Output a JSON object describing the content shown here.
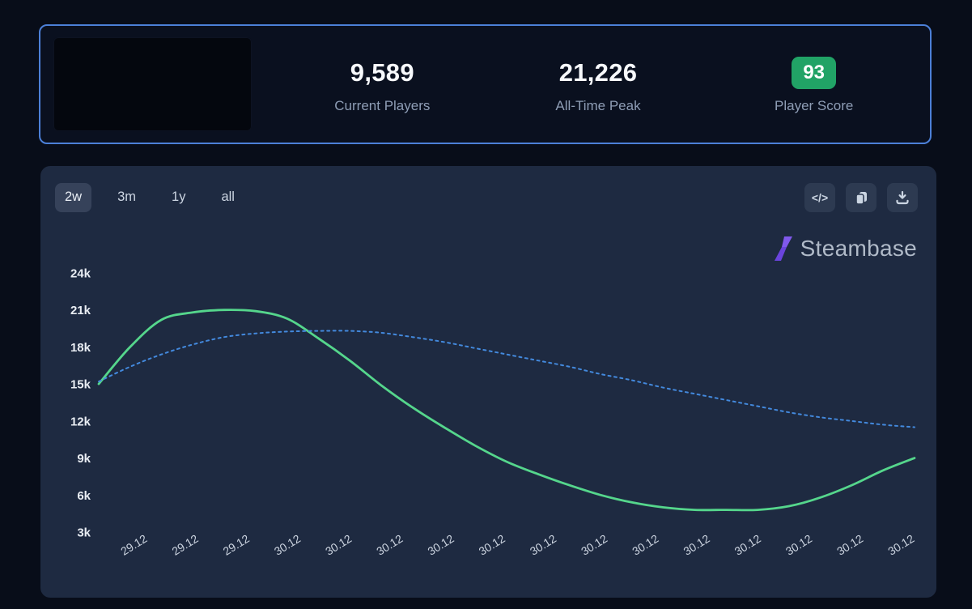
{
  "stats_card": {
    "current_players": {
      "value": "9,589",
      "label": "Current Players"
    },
    "all_time_peak": {
      "value": "21,226",
      "label": "All-Time Peak"
    },
    "player_score": {
      "value": "93",
      "label": "Player Score",
      "badge_color": "#21a366"
    }
  },
  "chart_card": {
    "range_buttons": [
      {
        "label": "2w",
        "active": true
      },
      {
        "label": "3m",
        "active": false
      },
      {
        "label": "1y",
        "active": false
      },
      {
        "label": "all",
        "active": false
      }
    ],
    "actions": {
      "embed_glyph": "</>"
    },
    "brand": {
      "name": "Steambase",
      "icon_color_top": "#8059ec",
      "icon_color_bottom": "#6a44dd"
    }
  },
  "chart_data": {
    "type": "line",
    "title": "",
    "xlabel": "",
    "ylabel": "",
    "grid": false,
    "legend": "none",
    "ylim": [
      3000,
      24000
    ],
    "y_ticks": [
      "24k",
      "21k",
      "18k",
      "15k",
      "12k",
      "9k",
      "6k",
      "3k"
    ],
    "y_tick_values": [
      24000,
      21000,
      18000,
      15000,
      12000,
      9000,
      6000,
      3000
    ],
    "x_labels": [
      "29.12",
      "29.12",
      "29.12",
      "30.12",
      "30.12",
      "30.12",
      "30.12",
      "30.12",
      "30.12",
      "30.12",
      "30.12",
      "30.12",
      "30.12",
      "30.12",
      "30.12",
      "30.12"
    ],
    "series": [
      {
        "name": "players",
        "color": "#55d68c",
        "style": "solid",
        "values": [
          15000,
          18000,
          20200,
          20800,
          21000,
          20900,
          20300,
          18700,
          16900,
          14900,
          13100,
          11500,
          10000,
          8700,
          7700,
          6800,
          6000,
          5400,
          5000,
          4800,
          4800,
          4800,
          5100,
          5800,
          6800,
          8000,
          9000
        ]
      },
      {
        "name": "trend",
        "color": "#4389dd",
        "style": "dotted",
        "values": [
          15200,
          16400,
          17400,
          18200,
          18800,
          19100,
          19250,
          19300,
          19300,
          19150,
          18800,
          18400,
          17900,
          17400,
          16900,
          16400,
          15800,
          15300,
          14700,
          14200,
          13700,
          13200,
          12700,
          12300,
          12000,
          11700,
          11500
        ]
      }
    ]
  }
}
